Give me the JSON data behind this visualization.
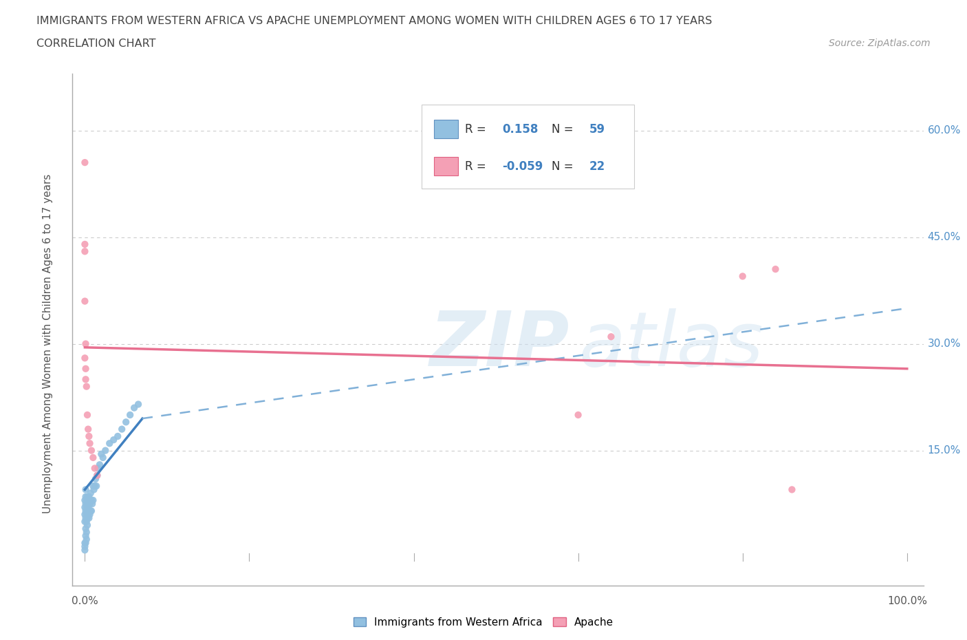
{
  "title_line1": "IMMIGRANTS FROM WESTERN AFRICA VS APACHE UNEMPLOYMENT AMONG WOMEN WITH CHILDREN AGES 6 TO 17 YEARS",
  "title_line2": "CORRELATION CHART",
  "source_text": "Source: ZipAtlas.com",
  "ylabel": "Unemployment Among Women with Children Ages 6 to 17 years",
  "blue_color": "#92c0e0",
  "pink_color": "#f4a0b5",
  "trend_blue_solid": "#4080c0",
  "trend_blue_dash": "#80b0d8",
  "trend_pink": "#e87090",
  "grid_color": "#cccccc",
  "blue_scatter_x": [
    0.0,
    0.0,
    0.0,
    0.0,
    0.0,
    0.0,
    0.001,
    0.001,
    0.001,
    0.001,
    0.001,
    0.001,
    0.001,
    0.002,
    0.002,
    0.002,
    0.002,
    0.002,
    0.003,
    0.003,
    0.003,
    0.003,
    0.004,
    0.004,
    0.004,
    0.005,
    0.005,
    0.005,
    0.006,
    0.006,
    0.007,
    0.007,
    0.008,
    0.008,
    0.009,
    0.01,
    0.01,
    0.011,
    0.012,
    0.013,
    0.014,
    0.015,
    0.016,
    0.018,
    0.02,
    0.022,
    0.025,
    0.03,
    0.035,
    0.04,
    0.045,
    0.05,
    0.055,
    0.06,
    0.065,
    0.0,
    0.001,
    0.002,
    0.003
  ],
  "blue_scatter_y": [
    0.05,
    0.06,
    0.07,
    0.08,
    0.02,
    0.01,
    0.055,
    0.065,
    0.075,
    0.085,
    0.095,
    0.03,
    0.04,
    0.05,
    0.06,
    0.07,
    0.08,
    0.025,
    0.055,
    0.065,
    0.075,
    0.085,
    0.06,
    0.07,
    0.08,
    0.055,
    0.065,
    0.085,
    0.06,
    0.075,
    0.065,
    0.09,
    0.065,
    0.08,
    0.075,
    0.08,
    0.1,
    0.095,
    0.1,
    0.11,
    0.1,
    0.115,
    0.125,
    0.13,
    0.145,
    0.14,
    0.15,
    0.16,
    0.165,
    0.17,
    0.18,
    0.19,
    0.2,
    0.21,
    0.215,
    0.015,
    0.02,
    0.035,
    0.045
  ],
  "pink_scatter_x": [
    0.0,
    0.0,
    0.0,
    0.0,
    0.0,
    0.001,
    0.001,
    0.001,
    0.002,
    0.003,
    0.004,
    0.005,
    0.006,
    0.008,
    0.01,
    0.012,
    0.015,
    0.6,
    0.64,
    0.8,
    0.84,
    0.86
  ],
  "pink_scatter_y": [
    0.555,
    0.44,
    0.43,
    0.36,
    0.28,
    0.3,
    0.265,
    0.25,
    0.24,
    0.2,
    0.18,
    0.17,
    0.16,
    0.15,
    0.14,
    0.125,
    0.115,
    0.2,
    0.31,
    0.395,
    0.405,
    0.095
  ],
  "blue_trend_x0": 0.0,
  "blue_trend_x_solid_end": 0.07,
  "blue_trend_x_dash_end": 1.0,
  "blue_trend_y0": 0.095,
  "blue_trend_y_solid_end": 0.195,
  "blue_trend_y_dash_end": 0.35,
  "pink_trend_x0": 0.0,
  "pink_trend_x_end": 1.0,
  "pink_trend_y0": 0.295,
  "pink_trend_y_end": 0.265,
  "ylim_min": -0.04,
  "ylim_max": 0.68,
  "xlim_min": -0.015,
  "xlim_max": 1.02,
  "ytick_positions": [
    0.15,
    0.3,
    0.45,
    0.6
  ],
  "ytick_labels": [
    "15.0%",
    "30.0%",
    "45.0%",
    "60.0%"
  ],
  "xtick_positions": [
    0.0,
    0.2,
    0.4,
    0.6,
    0.8,
    1.0
  ],
  "legend_r1": "0.158",
  "legend_n1": "59",
  "legend_r2": "-0.059",
  "legend_n2": "22"
}
